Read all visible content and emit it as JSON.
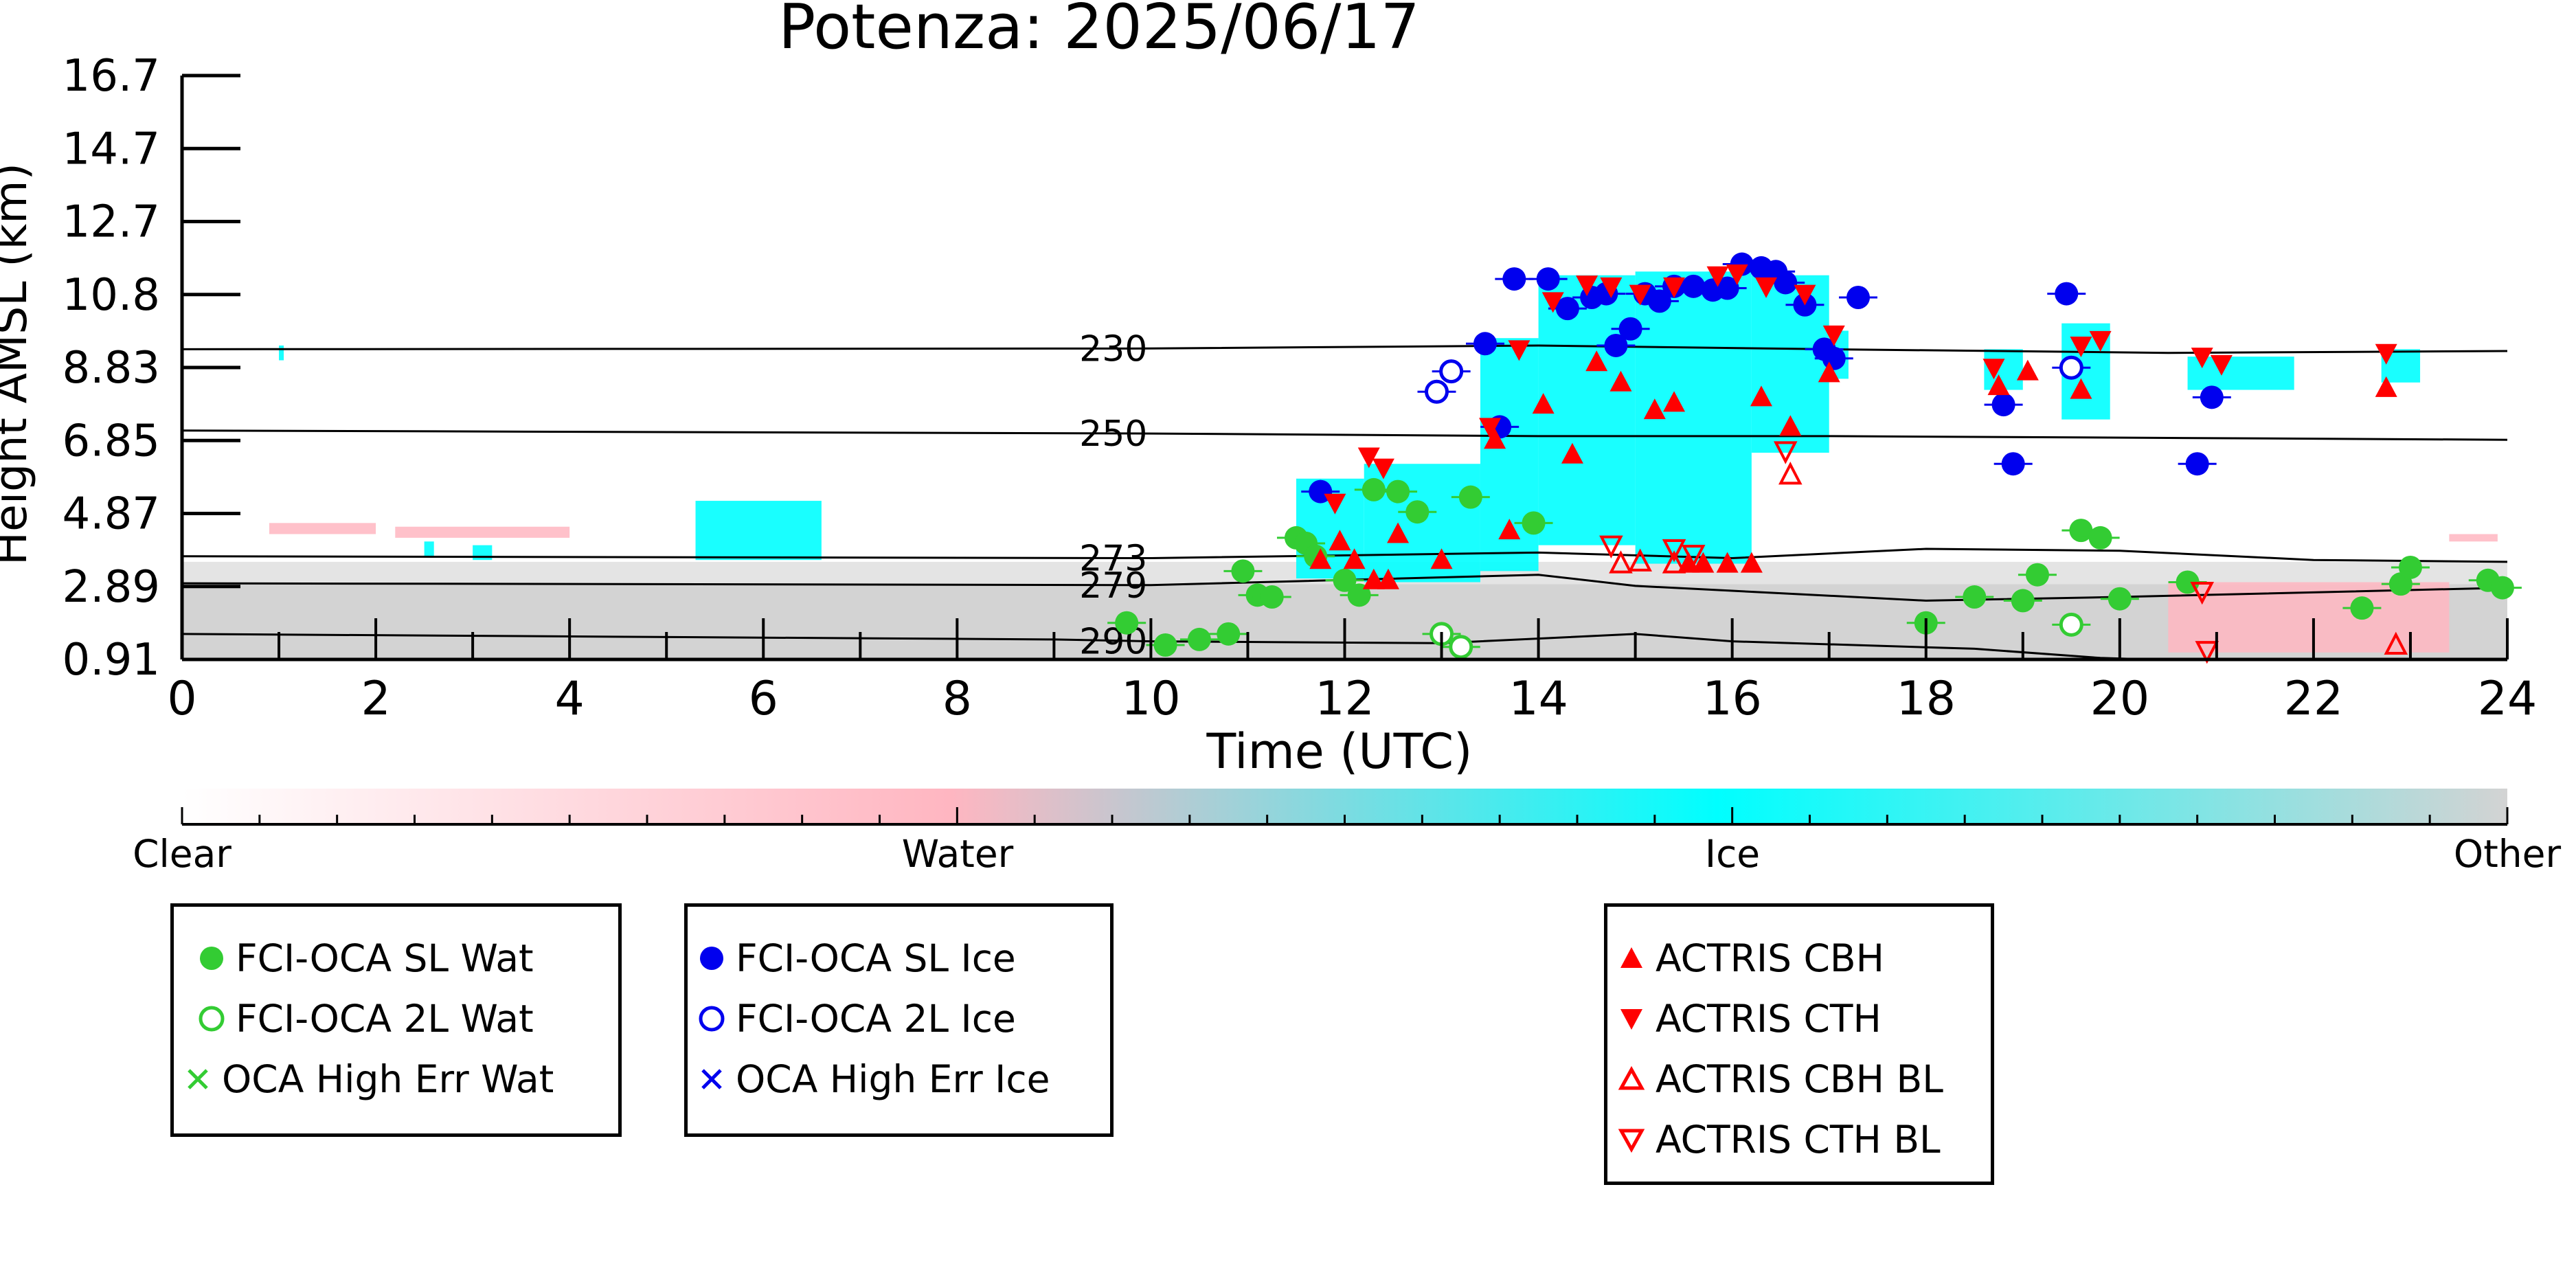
{
  "chart_data": {
    "type": "scatter",
    "title": "Potenza: 2025/06/17",
    "xlabel": "Time (UTC)",
    "ylabel": "Height AMSL (km)",
    "xlim": [
      0,
      24
    ],
    "ylim": [
      0.91,
      16.7
    ],
    "x_ticks": [
      "0",
      "2",
      "4",
      "6",
      "8",
      "10",
      "12",
      "14",
      "16",
      "18",
      "20",
      "22",
      "24"
    ],
    "y_ticks": [
      "0.91",
      "2.89",
      "4.87",
      "6.85",
      "8.83",
      "10.8",
      "12.7",
      "14.7",
      "16.7"
    ],
    "colorbar": {
      "labels": [
        "Clear",
        "Water",
        "Ice",
        "Other"
      ],
      "colors": [
        "#ffffff",
        "#ffb6c1",
        "#00ffff",
        "#d3d3d3"
      ]
    },
    "isotherms": [
      {
        "label": "230",
        "points": [
          [
            0,
            9.3
          ],
          [
            10,
            9.32
          ],
          [
            14,
            9.4
          ],
          [
            17,
            9.3
          ],
          [
            20.5,
            9.2
          ],
          [
            24,
            9.25
          ]
        ]
      },
      {
        "label": "250",
        "points": [
          [
            0,
            7.1
          ],
          [
            10,
            7.02
          ],
          [
            14,
            6.95
          ],
          [
            17,
            6.95
          ],
          [
            20.5,
            6.9
          ],
          [
            24,
            6.85
          ]
        ]
      },
      {
        "label": "273",
        "points": [
          [
            0,
            3.7
          ],
          [
            10,
            3.65
          ],
          [
            14,
            3.8
          ],
          [
            16,
            3.65
          ],
          [
            18,
            3.9
          ],
          [
            20,
            3.85
          ],
          [
            22,
            3.6
          ],
          [
            24,
            3.55
          ]
        ]
      },
      {
        "label": "279",
        "points": [
          [
            0,
            2.97
          ],
          [
            10,
            2.92
          ],
          [
            14,
            3.2
          ],
          [
            15,
            2.9
          ],
          [
            16.5,
            2.7
          ],
          [
            18,
            2.5
          ],
          [
            20,
            2.6
          ],
          [
            24,
            2.85
          ]
        ]
      },
      {
        "label": "290",
        "points": [
          [
            0,
            1.6
          ],
          [
            9,
            1.45
          ],
          [
            10,
            1.4
          ],
          [
            13,
            1.35
          ],
          [
            15,
            1.6
          ],
          [
            16,
            1.4
          ],
          [
            18.5,
            1.2
          ],
          [
            19.8,
            0.95
          ],
          [
            20.3,
            0.91
          ]
        ]
      }
    ],
    "series": [
      {
        "name": "FCI-OCA SL Wat",
        "marker": "filled-circle",
        "color": "#33cc33",
        "points": [
          [
            9.75,
            1.9
          ],
          [
            10.15,
            1.3
          ],
          [
            10.5,
            1.45
          ],
          [
            10.8,
            1.6
          ],
          [
            10.95,
            3.3
          ],
          [
            11.1,
            2.65
          ],
          [
            11.25,
            2.6
          ],
          [
            11.5,
            4.2
          ],
          [
            11.6,
            4.05
          ],
          [
            11.7,
            3.7
          ],
          [
            12.0,
            3.05
          ],
          [
            12.15,
            2.65
          ],
          [
            12.3,
            5.5
          ],
          [
            12.55,
            5.45
          ],
          [
            12.75,
            4.9
          ],
          [
            13.3,
            5.3
          ],
          [
            13.95,
            4.6
          ],
          [
            18.0,
            1.9
          ],
          [
            18.5,
            2.6
          ],
          [
            19.0,
            2.5
          ],
          [
            19.15,
            3.2
          ],
          [
            19.6,
            4.4
          ],
          [
            19.8,
            4.2
          ],
          [
            20.0,
            2.55
          ],
          [
            20.7,
            3.0
          ],
          [
            22.5,
            2.3
          ],
          [
            22.9,
            2.95
          ],
          [
            23.0,
            3.4
          ],
          [
            23.8,
            3.05
          ],
          [
            23.95,
            2.85
          ]
        ]
      },
      {
        "name": "FCI-OCA 2L Wat",
        "marker": "open-circle",
        "color": "#33cc33",
        "points": [
          [
            13.0,
            1.6
          ],
          [
            13.2,
            1.25
          ],
          [
            19.5,
            1.85
          ]
        ]
      },
      {
        "name": "OCA High Err Wat",
        "marker": "x",
        "color": "#33cc33",
        "points": []
      },
      {
        "name": "FCI-OCA SL Ice",
        "marker": "filled-circle",
        "color": "#0000ff",
        "points": [
          [
            11.75,
            5.45
          ],
          [
            13.45,
            9.45
          ],
          [
            13.6,
            7.2
          ],
          [
            13.75,
            11.2
          ],
          [
            14.1,
            11.2
          ],
          [
            14.3,
            10.4
          ],
          [
            14.55,
            10.7
          ],
          [
            14.7,
            10.8
          ],
          [
            14.8,
            9.4
          ],
          [
            14.95,
            9.85
          ],
          [
            15.1,
            10.8
          ],
          [
            15.25,
            10.6
          ],
          [
            15.4,
            11.0
          ],
          [
            15.6,
            11.0
          ],
          [
            15.8,
            10.9
          ],
          [
            15.95,
            10.95
          ],
          [
            16.1,
            11.6
          ],
          [
            16.3,
            11.5
          ],
          [
            16.45,
            11.4
          ],
          [
            16.55,
            11.1
          ],
          [
            16.75,
            10.5
          ],
          [
            16.95,
            9.3
          ],
          [
            17.05,
            9.05
          ],
          [
            17.3,
            10.7
          ],
          [
            18.8,
            7.8
          ],
          [
            18.9,
            6.2
          ],
          [
            19.45,
            10.8
          ],
          [
            20.8,
            6.2
          ],
          [
            20.95,
            8.0
          ]
        ]
      },
      {
        "name": "FCI-OCA 2L Ice",
        "marker": "open-circle",
        "color": "#0000ff",
        "points": [
          [
            12.95,
            8.15
          ],
          [
            13.1,
            8.7
          ],
          [
            19.5,
            8.8
          ]
        ]
      },
      {
        "name": "OCA High Err Ice",
        "marker": "x",
        "color": "#0000ff",
        "points": []
      },
      {
        "name": "ACTRIS CBH",
        "marker": "triangle-up",
        "color": "#ff0000",
        "points": [
          [
            11.75,
            3.6
          ],
          [
            11.95,
            4.1
          ],
          [
            12.1,
            3.6
          ],
          [
            12.3,
            3.05
          ],
          [
            12.45,
            3.05
          ],
          [
            12.55,
            4.3
          ],
          [
            13.0,
            3.6
          ],
          [
            13.55,
            6.85
          ],
          [
            13.7,
            4.4
          ],
          [
            14.05,
            7.8
          ],
          [
            14.35,
            6.45
          ],
          [
            14.6,
            8.95
          ],
          [
            14.85,
            8.4
          ],
          [
            15.2,
            7.65
          ],
          [
            15.4,
            7.85
          ],
          [
            15.55,
            3.5
          ],
          [
            15.7,
            3.5
          ],
          [
            15.95,
            3.5
          ],
          [
            16.2,
            3.5
          ],
          [
            16.3,
            8.0
          ],
          [
            16.6,
            7.2
          ],
          [
            17.0,
            8.65
          ],
          [
            18.75,
            8.3
          ],
          [
            19.05,
            8.7
          ],
          [
            19.6,
            8.2
          ],
          [
            22.75,
            8.25
          ]
        ]
      },
      {
        "name": "ACTRIS CTH",
        "marker": "triangle-down",
        "color": "#ff0000",
        "points": [
          [
            11.9,
            5.15
          ],
          [
            12.25,
            6.4
          ],
          [
            12.4,
            6.1
          ],
          [
            13.5,
            7.2
          ],
          [
            13.8,
            9.3
          ],
          [
            14.15,
            10.6
          ],
          [
            14.5,
            11.05
          ],
          [
            14.75,
            11.0
          ],
          [
            15.05,
            10.8
          ],
          [
            15.4,
            11.0
          ],
          [
            15.85,
            11.3
          ],
          [
            16.05,
            11.35
          ],
          [
            16.35,
            11.0
          ],
          [
            16.75,
            10.8
          ],
          [
            17.05,
            9.7
          ],
          [
            18.7,
            8.8
          ],
          [
            19.6,
            9.4
          ],
          [
            19.8,
            9.55
          ],
          [
            20.85,
            9.1
          ],
          [
            21.05,
            8.9
          ],
          [
            22.75,
            9.2
          ]
        ]
      },
      {
        "name": "ACTRIS CBH BL",
        "marker": "open-triangle-up",
        "color": "#ff0000",
        "points": [
          [
            14.85,
            3.5
          ],
          [
            15.05,
            3.55
          ],
          [
            15.4,
            3.5
          ],
          [
            16.6,
            5.9
          ],
          [
            22.85,
            1.3
          ]
        ]
      },
      {
        "name": "ACTRIS CTH BL",
        "marker": "open-triangle-down",
        "color": "#ff0000",
        "points": [
          [
            14.75,
            4.0
          ],
          [
            15.4,
            3.9
          ],
          [
            15.6,
            3.75
          ],
          [
            16.55,
            6.55
          ],
          [
            20.85,
            2.75
          ],
          [
            20.9,
            1.15
          ]
        ]
      }
    ],
    "legend_groups": [
      [
        "FCI-OCA SL Wat",
        "FCI-OCA 2L Wat",
        "OCA High Err Wat"
      ],
      [
        "FCI-OCA SL Ice",
        "FCI-OCA 2L Ice",
        "OCA High Err Ice"
      ],
      [
        "ACTRIS CBH",
        "ACTRIS CTH",
        "ACTRIS CBH BL",
        "ACTRIS CTH BL"
      ]
    ]
  }
}
